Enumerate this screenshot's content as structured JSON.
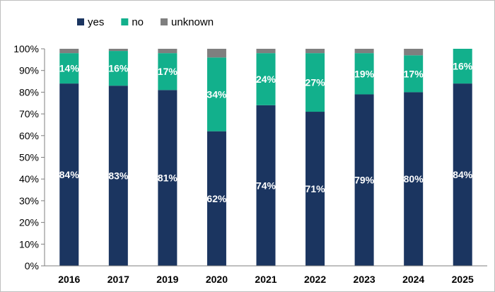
{
  "chart_data": {
    "type": "bar",
    "stacked": true,
    "percent_stacked": true,
    "categories": [
      "2016",
      "2017",
      "2019",
      "2020",
      "2021",
      "2022",
      "2023",
      "2024",
      "2025"
    ],
    "series": [
      {
        "name": "yes",
        "color": "#1b3560",
        "values": [
          84,
          83,
          81,
          62,
          74,
          71,
          79,
          80,
          84
        ],
        "labels": [
          "84%",
          "83%",
          "81%",
          "62%",
          "74%",
          "71%",
          "79%",
          "80%",
          "84%"
        ]
      },
      {
        "name": "no",
        "color": "#12b08c",
        "values": [
          14,
          16,
          17,
          34,
          24,
          27,
          19,
          17,
          16
        ],
        "labels": [
          "14%",
          "16%",
          "17%",
          "34%",
          "24%",
          "27%",
          "19%",
          "17%",
          "16%"
        ]
      },
      {
        "name": "unknown",
        "color": "#7f7f7f",
        "values": [
          2,
          1,
          2,
          4,
          2,
          2,
          2,
          3,
          0
        ],
        "labels": [
          "",
          "",
          "",
          "",
          "",
          "",
          "",
          "",
          ""
        ]
      }
    ],
    "yticks": [
      "0%",
      "10%",
      "20%",
      "30%",
      "40%",
      "50%",
      "60%",
      "70%",
      "80%",
      "90%",
      "100%"
    ],
    "ylim": [
      0,
      100
    ],
    "title": "",
    "xlabel": "",
    "ylabel": "",
    "grid": false,
    "legend_position": "top-left"
  }
}
